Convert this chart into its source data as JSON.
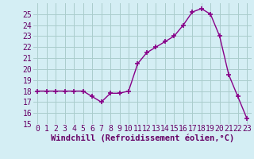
{
  "x": [
    0,
    1,
    2,
    3,
    4,
    5,
    6,
    7,
    8,
    9,
    10,
    11,
    12,
    13,
    14,
    15,
    16,
    17,
    18,
    19,
    20,
    21,
    22,
    23
  ],
  "y": [
    18,
    18,
    18,
    18,
    18,
    18,
    17.5,
    17,
    17.8,
    17.8,
    18,
    20.5,
    21.5,
    22,
    22.5,
    23,
    24,
    25.2,
    25.5,
    25,
    23,
    19.5,
    17.5,
    15.5
  ],
  "line_color": "#880088",
  "marker": "+",
  "marker_size": 5,
  "marker_linewidth": 1.2,
  "line_width": 1.0,
  "bg_color": "#d4eef4",
  "grid_color": "#aacccc",
  "xlabel": "Windchill (Refroidissement éolien,°C)",
  "xlabel_fontsize": 7.5,
  "tick_fontsize": 7,
  "ylim": [
    15,
    26
  ],
  "xlim": [
    -0.5,
    23.5
  ],
  "yticks": [
    15,
    16,
    17,
    18,
    19,
    20,
    21,
    22,
    23,
    24,
    25
  ],
  "xticks": [
    0,
    1,
    2,
    3,
    4,
    5,
    6,
    7,
    8,
    9,
    10,
    11,
    12,
    13,
    14,
    15,
    16,
    17,
    18,
    19,
    20,
    21,
    22,
    23
  ]
}
